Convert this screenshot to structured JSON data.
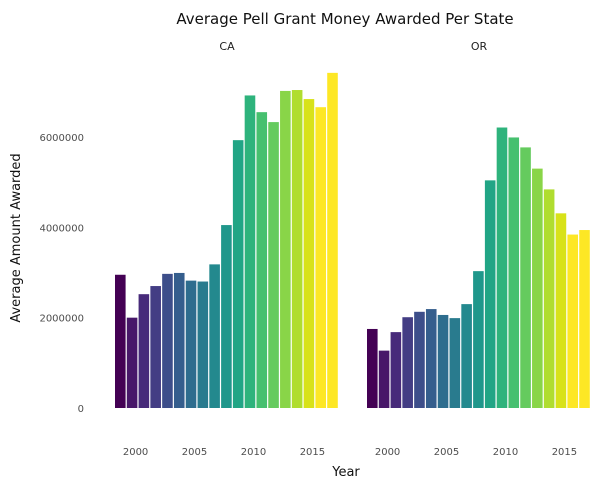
{
  "chart_data": {
    "type": "bar",
    "title": "Average Pell Grant Money Awarded Per State",
    "xlabel": "Year",
    "ylabel": "Average Amount Awarded",
    "ylim": [
      0,
      7600000
    ],
    "xlim": [
      1998.5,
      2016.5
    ],
    "y_ticks": [
      0,
      2000000,
      4000000,
      6000000
    ],
    "y_tick_labels": [
      "0",
      "2000000",
      "4000000",
      "6000000"
    ],
    "x_ticks": [
      2000,
      2005,
      2010,
      2015
    ],
    "x_tick_labels": [
      "2000",
      "2005",
      "2010",
      "2015"
    ],
    "grid": false,
    "color_scale": "viridis",
    "colors": [
      "#440154",
      "#481769",
      "#472a7a",
      "#433d84",
      "#3d4e8a",
      "#355e8d",
      "#2e6d8e",
      "#297b8e",
      "#23898e",
      "#1f978b",
      "#21a585",
      "#2eb37c",
      "#46c06f",
      "#65cb5e",
      "#89d548",
      "#b0dd2f",
      "#d8e219",
      "#fde725"
    ],
    "panels": [
      {
        "label": "CA",
        "x": [
          1999,
          2000,
          2001,
          2002,
          2003,
          2004,
          2005,
          2006,
          2007,
          2008,
          2009,
          2010,
          2011,
          2012,
          2013,
          2014,
          2015,
          2016
        ],
        "values": [
          2950000,
          2000000,
          2520000,
          2700000,
          2970000,
          2990000,
          2820000,
          2800000,
          3180000,
          4050000,
          5930000,
          6920000,
          6550000,
          6330000,
          7020000,
          7040000,
          6840000,
          6660000
        ]
      },
      {
        "label": "OR",
        "x": [
          1999,
          2000,
          2001,
          2002,
          2003,
          2004,
          2005,
          2006,
          2007,
          2008,
          2009,
          2010,
          2011,
          2012,
          2013,
          2014,
          2015,
          2016
        ],
        "values": [
          1750000,
          1270000,
          1680000,
          2010000,
          2130000,
          2190000,
          2060000,
          1990000,
          2300000,
          3030000,
          5040000,
          6210000,
          5990000,
          5770000,
          5300000,
          4840000,
          4310000,
          3840000
        ]
      }
    ],
    "extra_last_bars": [
      7420000,
      3940000
    ]
  }
}
